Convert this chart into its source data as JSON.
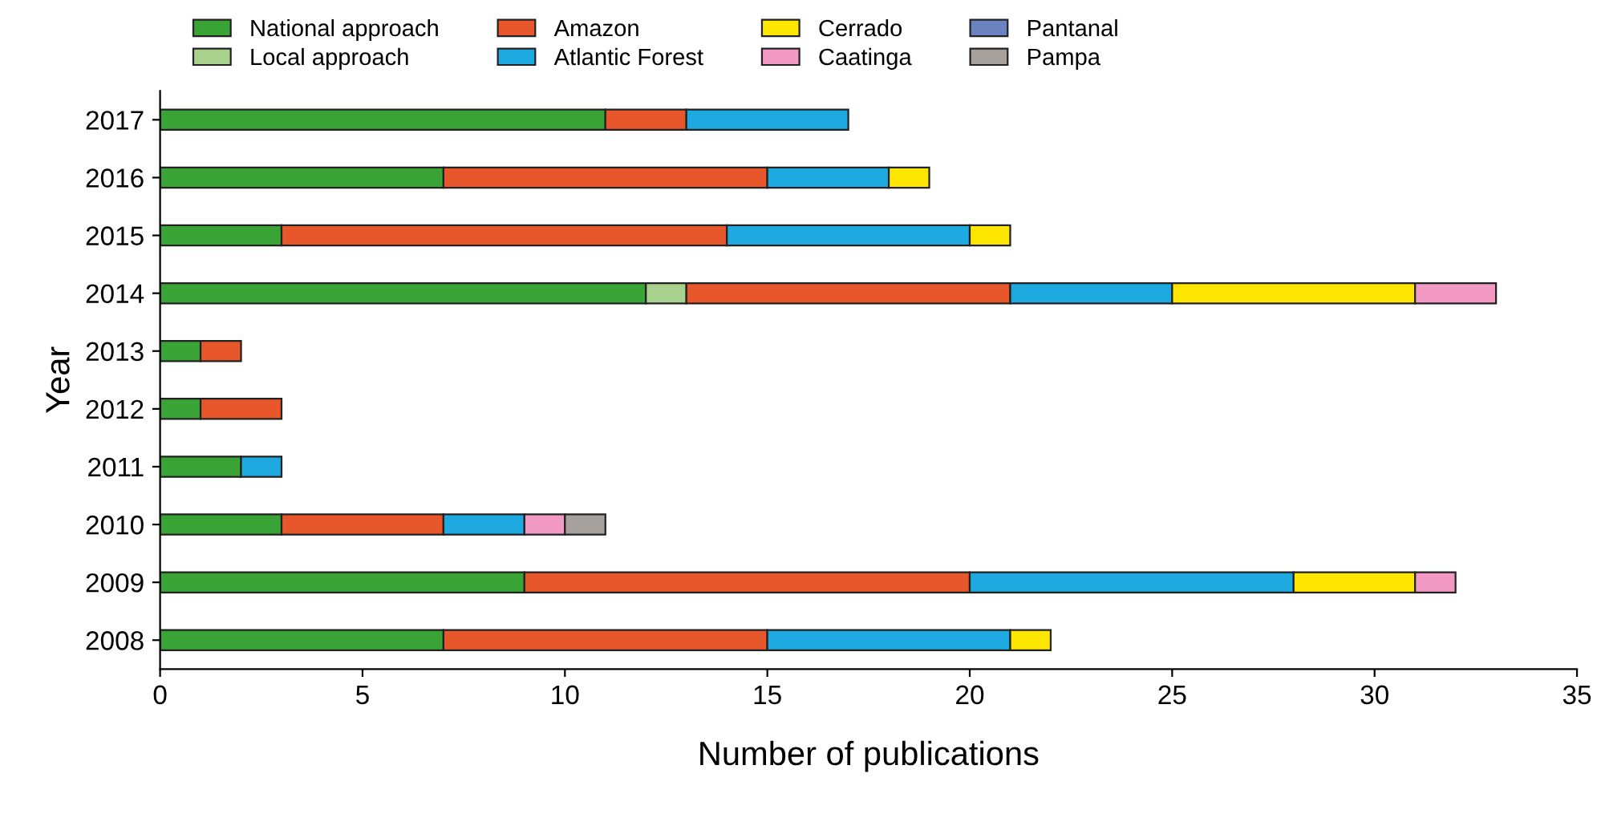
{
  "chart_data": {
    "type": "bar",
    "orientation": "horizontal",
    "stacked": true,
    "xlabel": "Number of publications",
    "ylabel": "Year",
    "categories": [
      "2017",
      "2016",
      "2015",
      "2014",
      "2013",
      "2012",
      "2011",
      "2010",
      "2009",
      "2008"
    ],
    "series": [
      {
        "name": "National approach",
        "color": "#3aa335",
        "values": [
          11,
          7,
          3,
          12,
          1,
          1,
          2,
          3,
          9,
          7
        ]
      },
      {
        "name": "Local approach",
        "color": "#a9d18e",
        "values": [
          null,
          null,
          null,
          1,
          null,
          null,
          null,
          null,
          null,
          null
        ]
      },
      {
        "name": "Amazon",
        "color": "#e8572b",
        "values": [
          2,
          8,
          11,
          8,
          1,
          2,
          null,
          4,
          11,
          8
        ]
      },
      {
        "name": "Atlantic Forest",
        "color": "#1fa9e1",
        "values": [
          4,
          3,
          6,
          4,
          null,
          null,
          1,
          2,
          8,
          6
        ]
      },
      {
        "name": "Cerrado",
        "color": "#ffe600",
        "values": [
          null,
          1,
          1,
          6,
          null,
          null,
          null,
          null,
          3,
          1
        ]
      },
      {
        "name": "Caatinga",
        "color": "#f29ac4",
        "values": [
          null,
          null,
          null,
          2,
          null,
          null,
          null,
          1,
          1,
          null
        ]
      },
      {
        "name": "Pantanal",
        "color": "#6a82c0",
        "values": [
          null,
          null,
          null,
          null,
          null,
          null,
          null,
          null,
          null,
          null
        ]
      },
      {
        "name": "Pampa",
        "color": "#a6a19c",
        "values": [
          null,
          null,
          null,
          null,
          null,
          null,
          null,
          1,
          null,
          null
        ]
      }
    ],
    "xlim": [
      0,
      35
    ],
    "xticks": [
      0,
      5,
      10,
      15,
      20,
      25,
      30,
      35
    ],
    "legend": "top",
    "grid": false
  }
}
